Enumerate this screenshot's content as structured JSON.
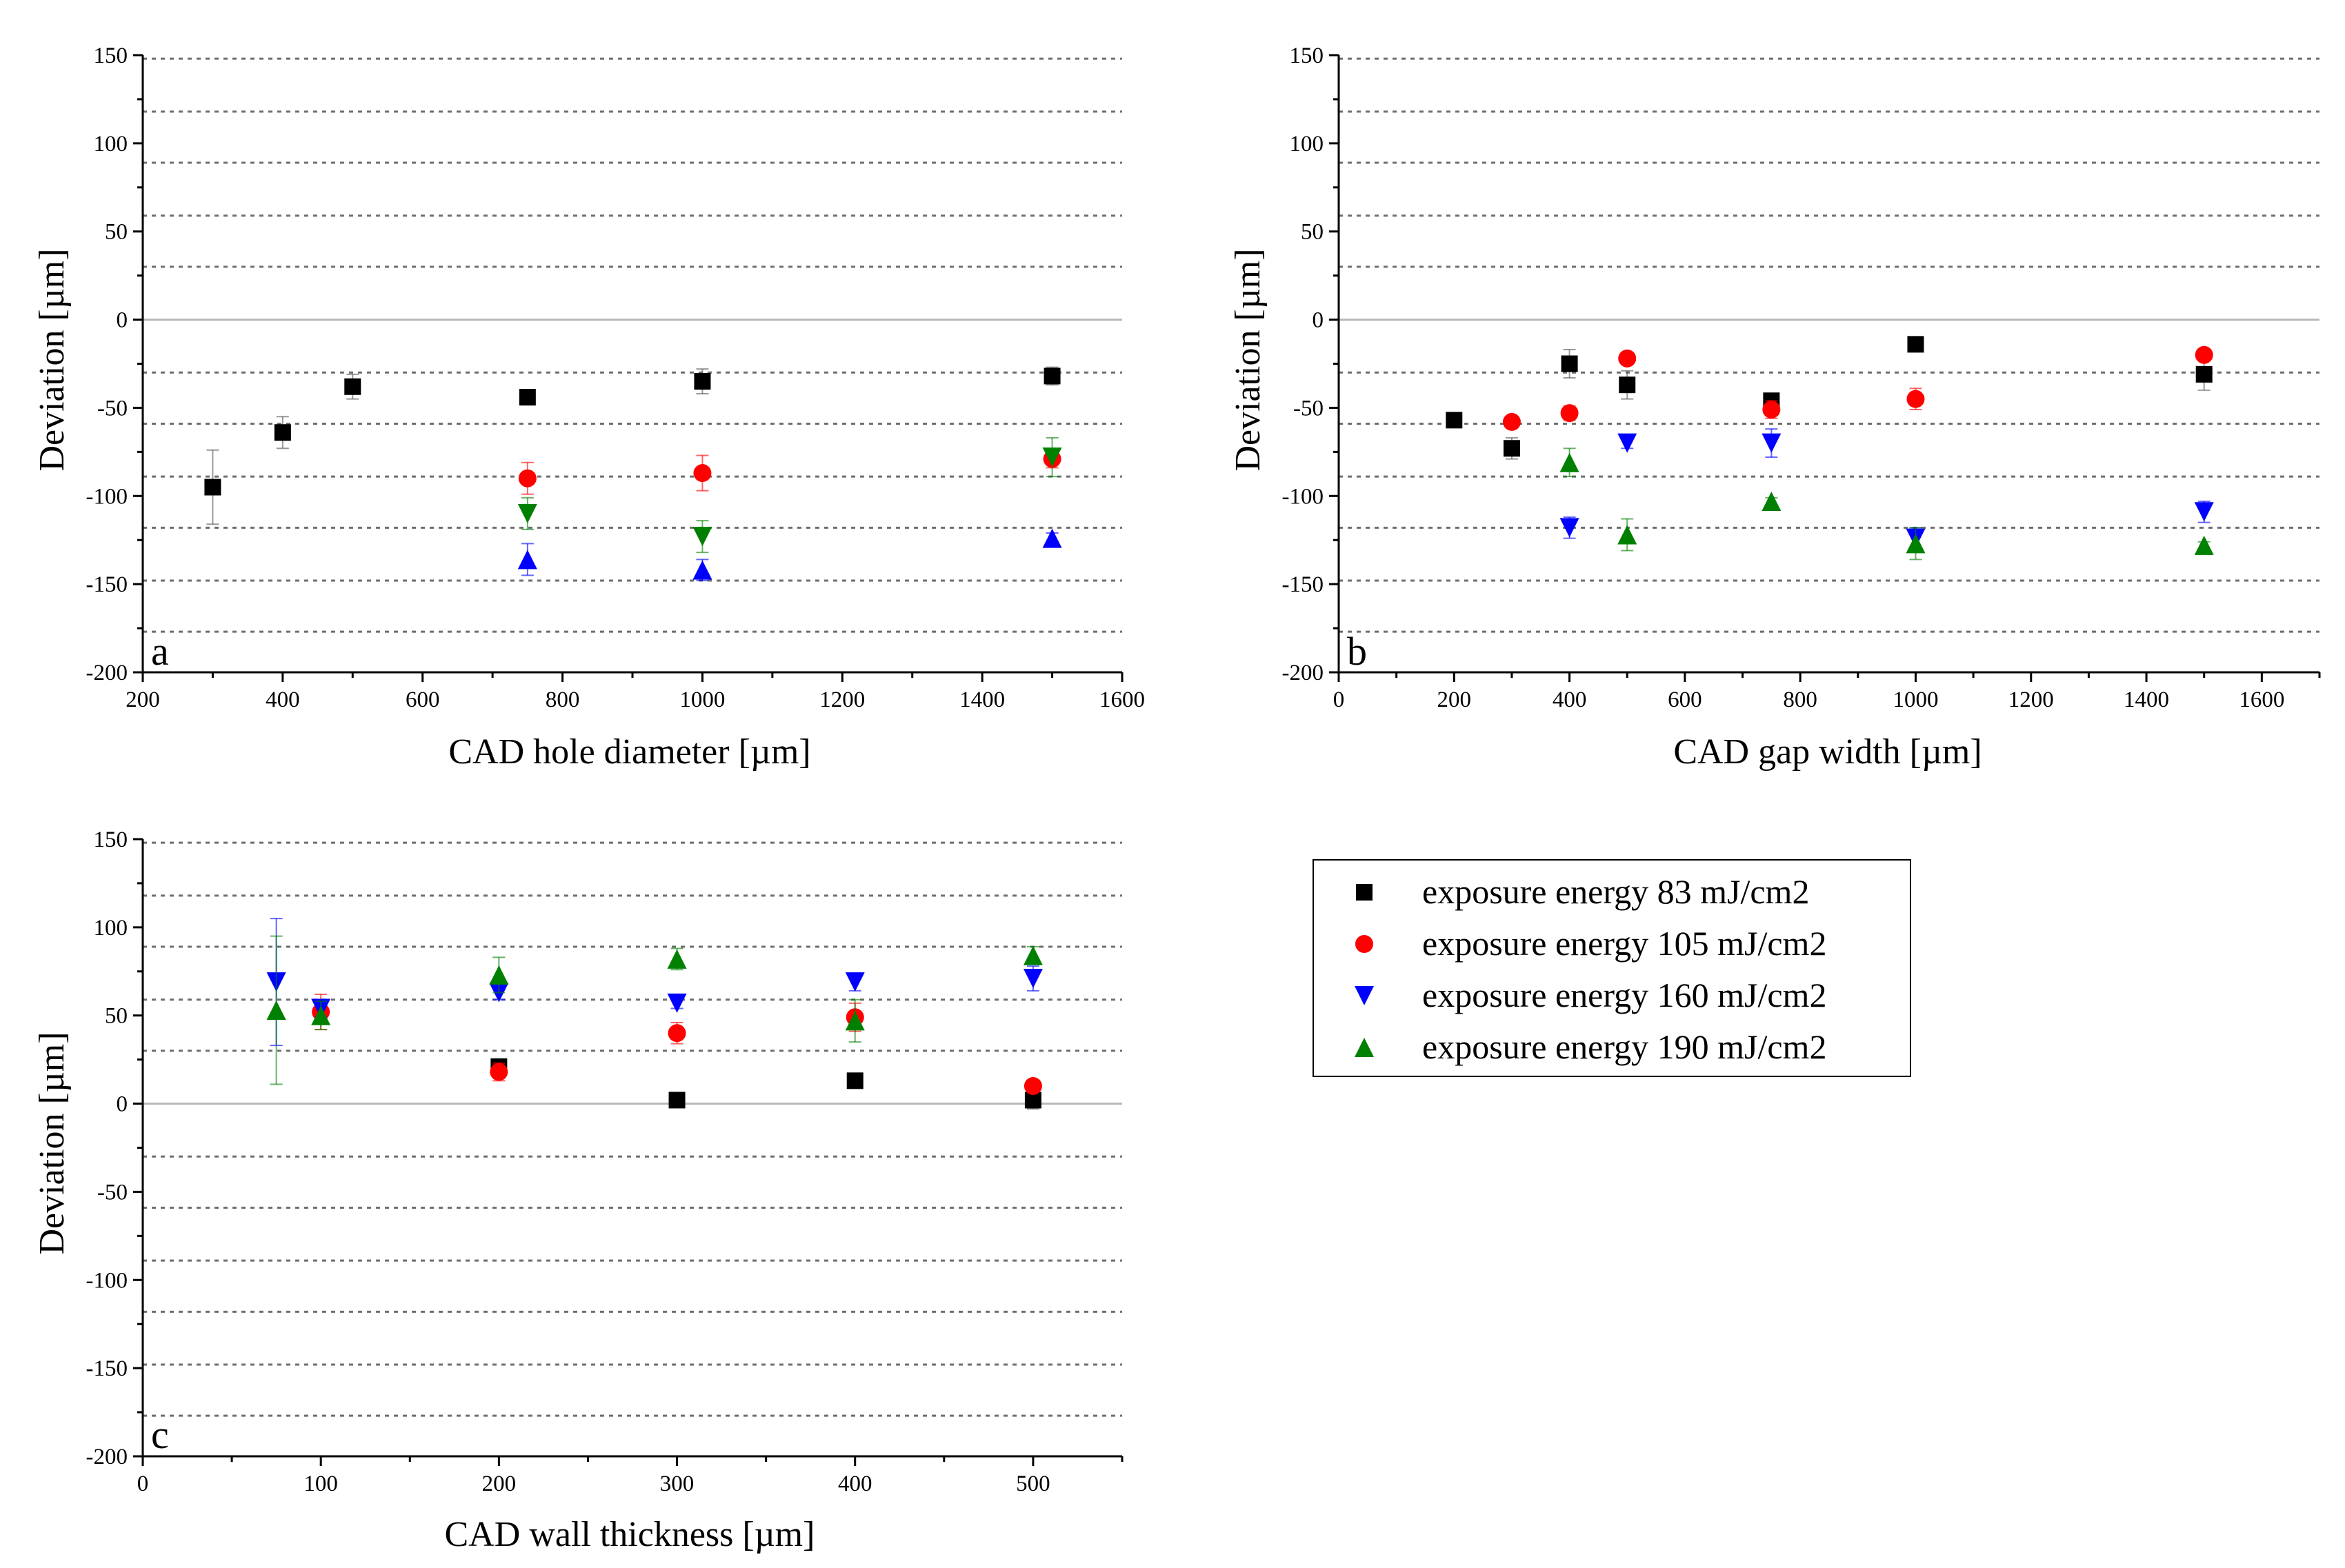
{
  "colors": {
    "e83": "#000000",
    "e105": "#ff0000",
    "e160": "#0000ff",
    "e190": "#008000",
    "grid": "#6f6f6f",
    "zero": "#b8b8b8",
    "error_bar": "#808080"
  },
  "legend": {
    "entries": [
      {
        "key": "e83",
        "label": "exposure energy 83 mJ/cm2",
        "marker": "square"
      },
      {
        "key": "e105",
        "label": "exposure energy 105 mJ/cm2",
        "marker": "circle"
      },
      {
        "key": "e160",
        "label": "exposure energy 160 mJ/cm2",
        "marker": "triangle-down"
      },
      {
        "key": "e190",
        "label": "exposure energy 190 mJ/cm2",
        "marker": "triangle-up"
      }
    ]
  },
  "chart_data": [
    {
      "id": "a",
      "type": "scatter",
      "letter": "a",
      "xlabel": "CAD hole diameter [µm]",
      "ylabel": "Deviation [µm]",
      "xlim": [
        200,
        1600
      ],
      "xticks": [
        200,
        400,
        600,
        800,
        1000,
        1200,
        1400,
        1600
      ],
      "ylim": [
        -200,
        150
      ],
      "yticks": [
        -200,
        -150,
        -100,
        -50,
        0,
        50,
        100,
        150
      ],
      "grid_y": [
        -177,
        -148,
        -118,
        -89,
        -59,
        -30,
        30,
        59,
        89,
        118,
        148
      ],
      "series": [
        {
          "key": "e83",
          "name": "exposure energy 83 mJ/cm2",
          "marker": "square",
          "points": [
            {
              "x": 300,
              "y": -95,
              "err": 21
            },
            {
              "x": 400,
              "y": -64,
              "err": 9
            },
            {
              "x": 500,
              "y": -38,
              "err": 7
            },
            {
              "x": 750,
              "y": -44,
              "err": 3
            },
            {
              "x": 1000,
              "y": -35,
              "err": 7
            },
            {
              "x": 1500,
              "y": -32,
              "err": 5
            }
          ]
        },
        {
          "key": "e105",
          "name": "exposure energy 105 mJ/cm2",
          "marker": "circle",
          "points": [
            {
              "x": 750,
              "y": -90,
              "err": 9
            },
            {
              "x": 1000,
              "y": -87,
              "err": 10
            },
            {
              "x": 1500,
              "y": -79,
              "err": 5
            }
          ]
        },
        {
          "key": "e160",
          "name": "exposure energy 160 mJ/cm2",
          "marker": "triangle-down",
          "points": []
        },
        {
          "key": "e190",
          "name": "exposure energy 190 mJ/cm2",
          "marker": "triangle-up",
          "points": []
        }
      ],
      "extra_markers": [
        {
          "key": "e190",
          "marker": "triangle-down",
          "x": 750,
          "y": -110,
          "err": 9
        },
        {
          "key": "e190",
          "marker": "triangle-down",
          "x": 1000,
          "y": -123,
          "err": 9
        },
        {
          "key": "e190",
          "marker": "triangle-down",
          "x": 1500,
          "y": -78,
          "err": 11
        },
        {
          "key": "e160",
          "marker": "triangle-up",
          "x": 750,
          "y": -136,
          "err": 9
        },
        {
          "key": "e160",
          "marker": "triangle-up",
          "x": 1000,
          "y": -142,
          "err": 6
        },
        {
          "key": "e160",
          "marker": "triangle-up",
          "x": 1500,
          "y": -124,
          "err": 3
        }
      ]
    },
    {
      "id": "b",
      "type": "scatter",
      "letter": "b",
      "xlabel": "CAD gap width [µm]",
      "ylabel": "Deviation [µm]",
      "xlim": [
        0,
        1700
      ],
      "xticks": [
        0,
        200,
        400,
        600,
        800,
        1000,
        1200,
        1400,
        1600
      ],
      "ylim": [
        -200,
        150
      ],
      "yticks": [
        -200,
        -150,
        -100,
        -50,
        0,
        50,
        100,
        150
      ],
      "grid_y": [
        -177,
        -148,
        -118,
        -89,
        -59,
        -30,
        30,
        59,
        89,
        118,
        148
      ],
      "series": [
        {
          "key": "e83",
          "name": "exposure energy 83 mJ/cm2",
          "marker": "square",
          "points": [
            {
              "x": 200,
              "y": -57,
              "err": 3
            },
            {
              "x": 300,
              "y": -73,
              "err": 6
            },
            {
              "x": 400,
              "y": -25,
              "err": 8
            },
            {
              "x": 500,
              "y": -37,
              "err": 8
            },
            {
              "x": 750,
              "y": -46,
              "err": 4
            },
            {
              "x": 1000,
              "y": -14,
              "err": 3
            },
            {
              "x": 1500,
              "y": -31,
              "err": 9
            }
          ]
        },
        {
          "key": "e105",
          "name": "exposure energy 105 mJ/cm2",
          "marker": "circle",
          "points": [
            {
              "x": 300,
              "y": -58,
              "err": 3
            },
            {
              "x": 400,
              "y": -53,
              "err": 4
            },
            {
              "x": 500,
              "y": -22,
              "err": 3
            },
            {
              "x": 750,
              "y": -51,
              "err": 5
            },
            {
              "x": 1000,
              "y": -45,
              "err": 6
            },
            {
              "x": 1500,
              "y": -20,
              "err": 3
            }
          ]
        },
        {
          "key": "e160",
          "name": "exposure energy 160 mJ/cm2",
          "marker": "triangle-down",
          "points": [
            {
              "x": 400,
              "y": -118,
              "err": 6
            },
            {
              "x": 500,
              "y": -70,
              "err": 3
            },
            {
              "x": 750,
              "y": -70,
              "err": 8
            },
            {
              "x": 1000,
              "y": -124,
              "err": 6
            },
            {
              "x": 1500,
              "y": -109,
              "err": 6
            }
          ]
        },
        {
          "key": "e190",
          "name": "exposure energy 190 mJ/cm2",
          "marker": "triangle-up",
          "points": [
            {
              "x": 400,
              "y": -81,
              "err": 8
            },
            {
              "x": 500,
              "y": -122,
              "err": 9
            },
            {
              "x": 750,
              "y": -103,
              "err": 2
            },
            {
              "x": 1000,
              "y": -127,
              "err": 9
            },
            {
              "x": 1500,
              "y": -128,
              "err": 2
            }
          ]
        }
      ]
    },
    {
      "id": "c",
      "type": "scatter",
      "letter": "c",
      "xlabel": "CAD wall thickness [µm]",
      "ylabel": "Deviation [µm]",
      "xlim": [
        0,
        550
      ],
      "xticks": [
        0,
        100,
        200,
        300,
        400,
        500
      ],
      "ylim": [
        -200,
        150
      ],
      "yticks": [
        -200,
        -150,
        -100,
        -50,
        0,
        50,
        100,
        150
      ],
      "grid_y": [
        -177,
        -148,
        -118,
        -89,
        -59,
        -30,
        30,
        59,
        89,
        118,
        148
      ],
      "series": [
        {
          "key": "e83",
          "name": "exposure energy 83 mJ/cm2",
          "marker": "square",
          "points": [
            {
              "x": 200,
              "y": 21,
              "err": 3
            },
            {
              "x": 300,
              "y": 2,
              "err": 2
            },
            {
              "x": 400,
              "y": 13,
              "err": 2
            },
            {
              "x": 500,
              "y": 2,
              "err": 5
            }
          ]
        },
        {
          "key": "e105",
          "name": "exposure energy 105 mJ/cm2",
          "marker": "circle",
          "points": [
            {
              "x": 100,
              "y": 52,
              "err": 10
            },
            {
              "x": 200,
              "y": 18,
              "err": 5
            },
            {
              "x": 300,
              "y": 40,
              "err": 6
            },
            {
              "x": 400,
              "y": 49,
              "err": 8
            },
            {
              "x": 500,
              "y": 10,
              "err": 2
            }
          ]
        },
        {
          "key": "e160",
          "name": "exposure energy 160 mJ/cm2",
          "marker": "triangle-down",
          "points": [
            {
              "x": 75,
              "y": 69,
              "err": 36
            },
            {
              "x": 100,
              "y": 54,
              "err": 5
            },
            {
              "x": 200,
              "y": 63,
              "err": 4
            },
            {
              "x": 300,
              "y": 57,
              "err": 3
            },
            {
              "x": 400,
              "y": 69,
              "err": 5
            },
            {
              "x": 500,
              "y": 71,
              "err": 7
            }
          ]
        },
        {
          "key": "e190",
          "name": "exposure energy 190 mJ/cm2",
          "marker": "triangle-up",
          "points": [
            {
              "x": 75,
              "y": 53,
              "err": 42
            },
            {
              "x": 100,
              "y": 50,
              "err": 8
            },
            {
              "x": 200,
              "y": 73,
              "err": 10
            },
            {
              "x": 300,
              "y": 82,
              "err": 6
            },
            {
              "x": 400,
              "y": 47,
              "err": 12
            },
            {
              "x": 500,
              "y": 84,
              "err": 5
            }
          ]
        }
      ]
    }
  ]
}
